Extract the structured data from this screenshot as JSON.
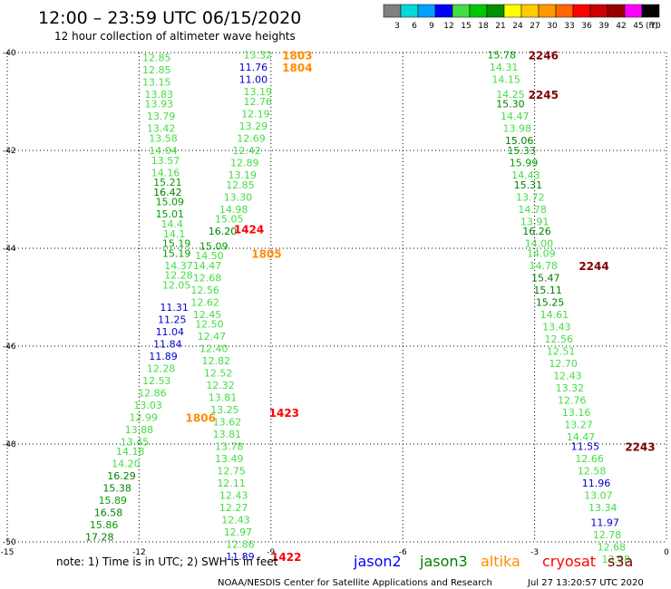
{
  "chart_data": {
    "type": "scatter",
    "title": "12:00 – 23:59 UTC 06/15/2020",
    "subtitle": "12 hour collection of altimeter wave heights",
    "unit_label": "(ft)",
    "x_ticks": [
      "-15",
      "-12",
      "-9",
      "-6",
      "-3",
      "0"
    ],
    "y_ticks": [
      "-40",
      "-42",
      "-44",
      "-46",
      "-48",
      "-50"
    ],
    "xlim": [
      -15,
      0
    ],
    "ylim": [
      -50,
      -40
    ],
    "grid": "dotted",
    "color_scale": {
      "labels": [
        "3",
        "6",
        "9",
        "12",
        "15",
        "18",
        "21",
        "24",
        "27",
        "30",
        "33",
        "36",
        "39",
        "42",
        "45",
        "70"
      ],
      "colors": [
        "#808080",
        "#00d8d8",
        "#00a0ff",
        "#0000ff",
        "#44dd44",
        "#00c800",
        "#009000",
        "#ffff00",
        "#ffcc00",
        "#ff9900",
        "#ff6600",
        "#ff0000",
        "#cc0000",
        "#990000",
        "#ff00ff",
        "#000000"
      ]
    },
    "sats": {
      "jason2": "#0000ff",
      "jason3": "#008000",
      "altika": "#ff8c00",
      "cryosat": "#ff0000",
      "s3a": "#800000"
    },
    "series": [
      {
        "points": [
          [
            -11.6,
            -40.1,
            "12.85",
            "#44dd44"
          ],
          [
            -11.6,
            -40.35,
            "12.85",
            "#44dd44"
          ],
          [
            -11.6,
            -40.6,
            "13.15",
            "#44dd44"
          ],
          [
            -11.55,
            -40.85,
            "13.83",
            "#44dd44"
          ],
          [
            -11.55,
            -41.05,
            "13.93",
            "#44dd44"
          ],
          [
            -11.5,
            -41.3,
            "13.79",
            "#44dd44"
          ],
          [
            -11.5,
            -41.55,
            "13.42",
            "#44dd44"
          ],
          [
            -11.45,
            -41.75,
            "13.58",
            "#44dd44"
          ],
          [
            -11.45,
            -42.0,
            "14.04",
            "#44dd44"
          ],
          [
            -11.4,
            -42.2,
            "13.57",
            "#44dd44"
          ],
          [
            -11.4,
            -42.45,
            "14.16",
            "#44dd44"
          ],
          [
            -11.35,
            -42.65,
            "15.21",
            "#00a000"
          ],
          [
            -11.35,
            -42.85,
            "16.42",
            "#008000"
          ],
          [
            -11.3,
            -43.05,
            "15.09",
            "#00a000"
          ],
          [
            -11.3,
            -43.3,
            "15.01",
            "#00a000"
          ],
          [
            -11.25,
            -43.5,
            "14.4",
            "#44dd44"
          ],
          [
            -11.2,
            -43.7,
            "14.1",
            "#44dd44"
          ],
          [
            -11.15,
            -43.9,
            "15.19",
            "#00a000"
          ],
          [
            -11.15,
            -44.1,
            "15.19",
            "#00a000"
          ],
          [
            -11.1,
            -44.35,
            "14.37",
            "#44dd44"
          ],
          [
            -11.1,
            -44.55,
            "12.28",
            "#44dd44"
          ],
          [
            -11.15,
            -44.75,
            "12.05",
            "#44dd44"
          ],
          [
            -11.2,
            -45.2,
            "11.31",
            "#0000cc"
          ],
          [
            -11.25,
            -45.45,
            "11.25",
            "#0000cc"
          ],
          [
            -11.3,
            -45.7,
            "11.04",
            "#0000cc"
          ],
          [
            -11.35,
            -45.95,
            "11.84",
            "#0000cc"
          ],
          [
            -11.45,
            -46.2,
            "11.89",
            "#0000cc"
          ],
          [
            -11.5,
            -46.45,
            "12.28",
            "#44dd44"
          ],
          [
            -11.6,
            -46.7,
            "12.53",
            "#44dd44"
          ],
          [
            -11.7,
            -46.95,
            "12.86",
            "#44dd44"
          ],
          [
            -11.8,
            -47.2,
            "13.03",
            "#44dd44"
          ],
          [
            -11.9,
            -47.45,
            "12.99",
            "#44dd44"
          ],
          [
            -12.0,
            -47.7,
            "13.88",
            "#44dd44"
          ],
          [
            -12.1,
            -47.95,
            "13.45",
            "#44dd44"
          ],
          [
            -12.2,
            -48.15,
            "14.18",
            "#44dd44"
          ],
          [
            -12.3,
            -48.4,
            "14.20",
            "#44dd44"
          ],
          [
            -12.4,
            -48.65,
            "16.29",
            "#008000"
          ],
          [
            -12.5,
            -48.9,
            "15.38",
            "#008000"
          ],
          [
            -12.6,
            -49.15,
            "15.89",
            "#00a000"
          ],
          [
            -12.7,
            -49.4,
            "16.58",
            "#008000"
          ],
          [
            -12.8,
            -49.65,
            "15.86",
            "#00a000"
          ],
          [
            -12.9,
            -49.9,
            "17.28",
            "#008000"
          ]
        ]
      },
      {
        "points": [
          [
            -9.3,
            -40.05,
            "13.32",
            "#44dd44"
          ],
          [
            -9.4,
            -40.3,
            "11.76",
            "#0000cc"
          ],
          [
            -9.4,
            -40.55,
            "11.00",
            "#0000cc"
          ],
          [
            -9.3,
            -40.8,
            "13.19",
            "#44dd44"
          ],
          [
            -9.3,
            -41.0,
            "12.76",
            "#44dd44"
          ],
          [
            -9.35,
            -41.25,
            "12.19",
            "#44dd44"
          ],
          [
            -9.4,
            -41.5,
            "13.29",
            "#44dd44"
          ],
          [
            -9.45,
            -41.75,
            "12.69",
            "#44dd44"
          ],
          [
            -9.55,
            -42.0,
            "12.42",
            "#44dd44"
          ],
          [
            -9.6,
            -42.25,
            "12.89",
            "#44dd44"
          ],
          [
            -9.65,
            -42.5,
            "13.19",
            "#44dd44"
          ],
          [
            -9.7,
            -42.7,
            "12.85",
            "#44dd44"
          ],
          [
            -9.75,
            -42.95,
            "13.30",
            "#44dd44"
          ],
          [
            -9.85,
            -43.2,
            "14.98",
            "#44dd44"
          ],
          [
            -9.95,
            -43.4,
            "15.05",
            "#44dd44"
          ],
          [
            -10.1,
            -43.65,
            "16.20",
            "#008000"
          ],
          [
            -10.3,
            -43.95,
            "15.09",
            "#00a000"
          ],
          [
            -10.4,
            -44.15,
            "14.50",
            "#44dd44"
          ],
          [
            -10.45,
            -44.35,
            "14.47",
            "#44dd44"
          ],
          [
            -10.45,
            -44.6,
            "12.68",
            "#44dd44"
          ],
          [
            -10.5,
            -44.85,
            "12.56",
            "#44dd44"
          ],
          [
            -10.5,
            -45.1,
            "12.62",
            "#44dd44"
          ],
          [
            -10.45,
            -45.35,
            "12.45",
            "#44dd44"
          ],
          [
            -10.4,
            -45.55,
            "12.50",
            "#44dd44"
          ],
          [
            -10.35,
            -45.8,
            "12.47",
            "#44dd44"
          ],
          [
            -10.3,
            -46.05,
            "12.40",
            "#44dd44"
          ],
          [
            -10.25,
            -46.3,
            "12.82",
            "#44dd44"
          ],
          [
            -10.2,
            -46.55,
            "12.52",
            "#44dd44"
          ],
          [
            -10.15,
            -46.8,
            "12.32",
            "#44dd44"
          ],
          [
            -10.1,
            -47.05,
            "13.81",
            "#44dd44"
          ],
          [
            -10.05,
            -47.3,
            "13.25",
            "#44dd44"
          ],
          [
            -10.0,
            -47.55,
            "13.62",
            "#44dd44"
          ],
          [
            -10.0,
            -47.8,
            "13.81",
            "#44dd44"
          ],
          [
            -9.95,
            -48.05,
            "13.78",
            "#44dd44"
          ],
          [
            -9.95,
            -48.3,
            "13.49",
            "#44dd44"
          ],
          [
            -9.9,
            -48.55,
            "12.75",
            "#44dd44"
          ],
          [
            -9.9,
            -48.8,
            "12.11",
            "#44dd44"
          ],
          [
            -9.85,
            -49.05,
            "12.43",
            "#44dd44"
          ],
          [
            -9.85,
            -49.3,
            "12.27",
            "#44dd44"
          ],
          [
            -9.8,
            -49.55,
            "12.43",
            "#44dd44"
          ],
          [
            -9.75,
            -49.8,
            "12.97",
            "#44dd44"
          ],
          [
            -9.7,
            -50.05,
            "12.86",
            "#44dd44"
          ],
          [
            -9.7,
            -50.3,
            "11.89",
            "#0000cc"
          ]
        ]
      },
      {
        "points": [
          [
            -3.75,
            -40.05,
            "15.78",
            "#00a000"
          ],
          [
            -3.7,
            -40.3,
            "14.31",
            "#44dd44"
          ],
          [
            -3.65,
            -40.55,
            "14.15",
            "#44dd44"
          ],
          [
            -3.55,
            -40.85,
            "14.25",
            "#44dd44"
          ],
          [
            -3.55,
            -41.05,
            "15.30",
            "#008000"
          ],
          [
            -3.45,
            -41.3,
            "14.47",
            "#44dd44"
          ],
          [
            -3.4,
            -41.55,
            "13.98",
            "#44dd44"
          ],
          [
            -3.35,
            -41.8,
            "15.06",
            "#008000"
          ],
          [
            -3.3,
            -42.0,
            "15.33",
            "#00a000"
          ],
          [
            -3.25,
            -42.25,
            "15.99",
            "#00a000"
          ],
          [
            -3.2,
            -42.5,
            "14.43",
            "#44dd44"
          ],
          [
            -3.15,
            -42.7,
            "15.31",
            "#008000"
          ],
          [
            -3.1,
            -42.95,
            "13.72",
            "#44dd44"
          ],
          [
            -3.05,
            -43.2,
            "14.78",
            "#44dd44"
          ],
          [
            -3.0,
            -43.45,
            "13.91",
            "#44dd44"
          ],
          [
            -2.95,
            -43.65,
            "16.26",
            "#008000"
          ],
          [
            -2.9,
            -43.9,
            "14.00",
            "#44dd44"
          ],
          [
            -2.85,
            -44.1,
            "14.09",
            "#44dd44"
          ],
          [
            -2.8,
            -44.35,
            "14.78",
            "#44dd44"
          ],
          [
            -2.75,
            -44.6,
            "15.47",
            "#008000"
          ],
          [
            -2.7,
            -44.85,
            "15.11",
            "#008000"
          ],
          [
            -2.65,
            -45.1,
            "15.25",
            "#008000"
          ],
          [
            -2.55,
            -45.35,
            "14.61",
            "#44dd44"
          ],
          [
            -2.5,
            -45.6,
            "13.43",
            "#44dd44"
          ],
          [
            -2.45,
            -45.85,
            "12.56",
            "#44dd44"
          ],
          [
            -2.4,
            -46.1,
            "12.51",
            "#44dd44"
          ],
          [
            -2.35,
            -46.35,
            "12.70",
            "#44dd44"
          ],
          [
            -2.25,
            -46.6,
            "12.43",
            "#44dd44"
          ],
          [
            -2.2,
            -46.85,
            "13.32",
            "#44dd44"
          ],
          [
            -2.15,
            -47.1,
            "12.76",
            "#44dd44"
          ],
          [
            -2.05,
            -47.35,
            "13.16",
            "#44dd44"
          ],
          [
            -2.0,
            -47.6,
            "13.27",
            "#44dd44"
          ],
          [
            -1.95,
            -47.85,
            "14.47",
            "#44dd44"
          ],
          [
            -1.85,
            -48.05,
            "11.55",
            "#0000cc"
          ],
          [
            -1.75,
            -48.3,
            "12.66",
            "#44dd44"
          ],
          [
            -1.7,
            -48.55,
            "12.58",
            "#44dd44"
          ],
          [
            -1.6,
            -48.8,
            "11.96",
            "#0000cc"
          ],
          [
            -1.55,
            -49.05,
            "13.07",
            "#44dd44"
          ],
          [
            -1.45,
            -49.3,
            "13.34",
            "#44dd44"
          ],
          [
            -1.4,
            -49.6,
            "11.97",
            "#0000cc"
          ],
          [
            -1.35,
            -49.85,
            "12.78",
            "#44dd44"
          ],
          [
            -1.25,
            -50.1,
            "12.68",
            "#44dd44"
          ],
          [
            -1.15,
            -50.35,
            "13.08",
            "#44dd44"
          ]
        ]
      }
    ],
    "time_labels": [
      {
        "x": -8.4,
        "y": -40.05,
        "text": "1803",
        "color": "#ff8c00"
      },
      {
        "x": -8.4,
        "y": -40.3,
        "text": "1804",
        "color": "#ff8c00"
      },
      {
        "x": -9.5,
        "y": -43.6,
        "text": "1424",
        "color": "#ff0000"
      },
      {
        "x": -9.1,
        "y": -44.1,
        "text": "1805",
        "color": "#ff8c00"
      },
      {
        "x": -8.7,
        "y": -47.35,
        "text": "1423",
        "color": "#ff0000"
      },
      {
        "x": -10.6,
        "y": -47.45,
        "text": "1806",
        "color": "#ff8c00"
      },
      {
        "x": -8.65,
        "y": -50.3,
        "text": "1422",
        "color": "#ff0000"
      },
      {
        "x": -2.8,
        "y": -40.05,
        "text": "2246",
        "color": "#800000"
      },
      {
        "x": -2.8,
        "y": -40.85,
        "text": "2245",
        "color": "#800000"
      },
      {
        "x": -1.65,
        "y": -44.35,
        "text": "2244",
        "color": "#800000"
      },
      {
        "x": -0.6,
        "y": -48.05,
        "text": "2243",
        "color": "#800000"
      }
    ]
  },
  "legend": {
    "note": "note:  1) Time is in UTC;  2) SWH is in feet",
    "sats": [
      "jason2",
      "jason3",
      "altika",
      "cryosat",
      "s3a"
    ],
    "footer_left": "NOAA/NESDIS Center for Satellite Applications and Research",
    "footer_right": "Jul 27 13:20:57 UTC 2020"
  }
}
